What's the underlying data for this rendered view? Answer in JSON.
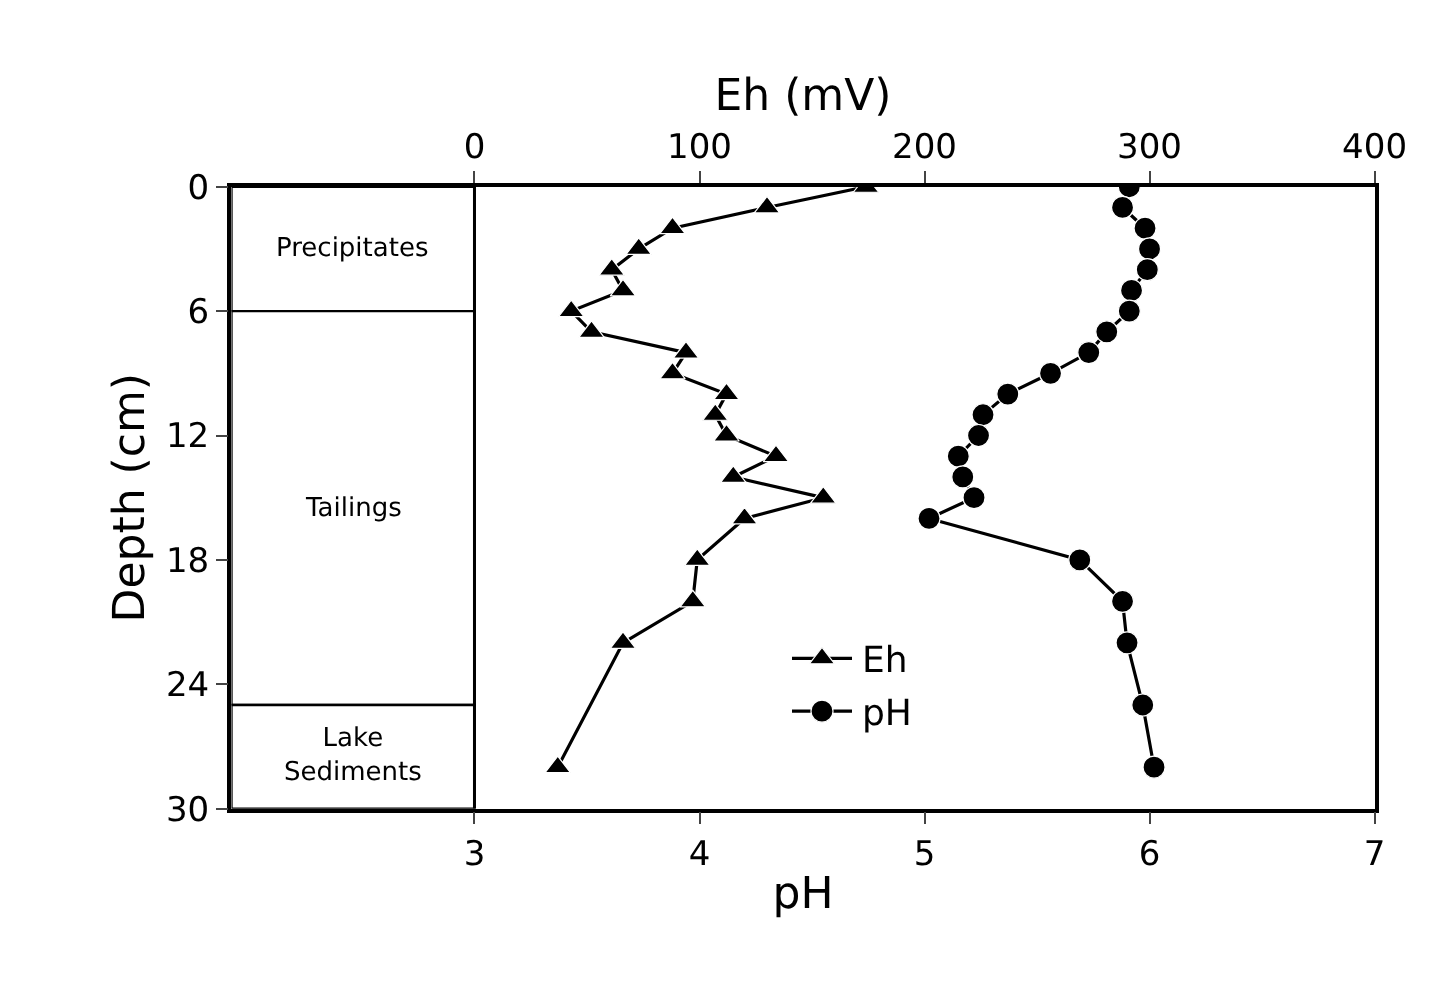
{
  "chart_data": {
    "type": "line",
    "xlabel": "pH",
    "x2label": "Eh (mV)",
    "ylabel": "Depth (cm)",
    "xlim": [
      1.92,
      7
    ],
    "xticks": [
      3,
      4,
      5,
      6,
      7
    ],
    "x2lim": [
      -108,
      400
    ],
    "x2ticks": [
      0,
      100,
      200,
      300,
      400
    ],
    "ylim": [
      30,
      0
    ],
    "yticks": [
      0,
      6,
      12,
      18,
      24,
      30
    ],
    "series": [
      {
        "name": "Eh",
        "color": "#000000",
        "axis": "x2",
        "marker": "triangle",
        "x": [
          174,
          130,
          88,
          73,
          61,
          66,
          43,
          52,
          94,
          88,
          112,
          107,
          112,
          134,
          115,
          155,
          120,
          99,
          97,
          66,
          37
        ],
        "values": [
          0,
          1,
          2,
          3,
          4,
          5,
          6,
          7,
          8,
          9,
          10,
          11,
          12,
          13,
          14,
          15,
          16,
          18,
          20,
          22,
          28
        ]
      },
      {
        "name": "pH",
        "color": "#000000",
        "marker": "circle",
        "x": [
          5.91,
          5.88,
          5.98,
          6.0,
          5.99,
          5.92,
          5.91,
          5.81,
          5.73,
          5.56,
          5.37,
          5.26,
          5.24,
          5.15,
          5.17,
          5.22,
          5.02,
          5.69,
          5.88,
          5.9,
          5.97,
          6.02
        ],
        "values": [
          0,
          1,
          2,
          3,
          4,
          5,
          6,
          7,
          8,
          9,
          10,
          11,
          12,
          13,
          14,
          15,
          16,
          18,
          20,
          22,
          25,
          28
        ]
      }
    ],
    "ref_lines": [
      {
        "axis": "x",
        "value": 3
      }
    ],
    "bands": [
      {
        "axis": "y",
        "from": 0,
        "to": 6,
        "label": "Precipitates",
        "color": "#ffffff"
      },
      {
        "axis": "y",
        "from": 6,
        "to": 25,
        "label": "Tailings",
        "color": "#ffffff"
      },
      {
        "axis": "y",
        "from": 25,
        "to": 30,
        "label": "Lake\nSediments",
        "color": "#ffffff"
      }
    ],
    "legend": "bottom",
    "grid": false
  }
}
